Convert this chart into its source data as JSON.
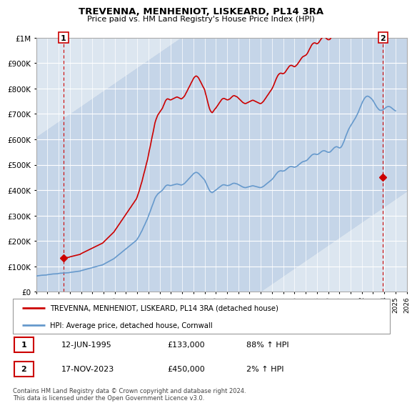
{
  "title": "TREVENNA, MENHENIOT, LISKEARD, PL14 3RA",
  "subtitle": "Price paid vs. HM Land Registry's House Price Index (HPI)",
  "legend_line1": "TREVENNA, MENHENIOT, LISKEARD, PL14 3RA (detached house)",
  "legend_line2": "HPI: Average price, detached house, Cornwall",
  "footnote": "Contains HM Land Registry data © Crown copyright and database right 2024.\nThis data is licensed under the Open Government Licence v3.0.",
  "annotation1_label": "1",
  "annotation1_date": "12-JUN-1995",
  "annotation1_price": "£133,000",
  "annotation1_hpi": "88% ↑ HPI",
  "annotation2_label": "2",
  "annotation2_date": "17-NOV-2023",
  "annotation2_price": "£450,000",
  "annotation2_hpi": "2% ↑ HPI",
  "red_line_color": "#cc0000",
  "blue_line_color": "#6699cc",
  "point1_x": 1995.44,
  "point1_y": 133000,
  "point2_x": 2023.88,
  "point2_y": 450000,
  "ylim": [
    0,
    1000000
  ],
  "xlim": [
    1993,
    2026
  ],
  "hpi_years": [
    1993.0,
    1993.08,
    1993.17,
    1993.25,
    1993.33,
    1993.42,
    1993.5,
    1993.58,
    1993.67,
    1993.75,
    1993.83,
    1993.92,
    1994.0,
    1994.08,
    1994.17,
    1994.25,
    1994.33,
    1994.42,
    1994.5,
    1994.58,
    1994.67,
    1994.75,
    1994.83,
    1994.92,
    1995.0,
    1995.08,
    1995.17,
    1995.25,
    1995.33,
    1995.42,
    1995.5,
    1995.58,
    1995.67,
    1995.75,
    1995.83,
    1995.92,
    1996.0,
    1996.08,
    1996.17,
    1996.25,
    1996.33,
    1996.42,
    1996.5,
    1996.58,
    1996.67,
    1996.75,
    1996.83,
    1996.92,
    1997.0,
    1997.08,
    1997.17,
    1997.25,
    1997.33,
    1997.42,
    1997.5,
    1997.58,
    1997.67,
    1997.75,
    1997.83,
    1997.92,
    1998.0,
    1998.08,
    1998.17,
    1998.25,
    1998.33,
    1998.42,
    1998.5,
    1998.58,
    1998.67,
    1998.75,
    1998.83,
    1998.92,
    1999.0,
    1999.08,
    1999.17,
    1999.25,
    1999.33,
    1999.42,
    1999.5,
    1999.58,
    1999.67,
    1999.75,
    1999.83,
    1999.92,
    2000.0,
    2000.08,
    2000.17,
    2000.25,
    2000.33,
    2000.42,
    2000.5,
    2000.58,
    2000.67,
    2000.75,
    2000.83,
    2000.92,
    2001.0,
    2001.08,
    2001.17,
    2001.25,
    2001.33,
    2001.42,
    2001.5,
    2001.58,
    2001.67,
    2001.75,
    2001.83,
    2001.92,
    2002.0,
    2002.08,
    2002.17,
    2002.25,
    2002.33,
    2002.42,
    2002.5,
    2002.58,
    2002.67,
    2002.75,
    2002.83,
    2002.92,
    2003.0,
    2003.08,
    2003.17,
    2003.25,
    2003.33,
    2003.42,
    2003.5,
    2003.58,
    2003.67,
    2003.75,
    2003.83,
    2003.92,
    2004.0,
    2004.08,
    2004.17,
    2004.25,
    2004.33,
    2004.42,
    2004.5,
    2004.58,
    2004.67,
    2004.75,
    2004.83,
    2004.92,
    2005.0,
    2005.08,
    2005.17,
    2005.25,
    2005.33,
    2005.42,
    2005.5,
    2005.58,
    2005.67,
    2005.75,
    2005.83,
    2005.92,
    2006.0,
    2006.08,
    2006.17,
    2006.25,
    2006.33,
    2006.42,
    2006.5,
    2006.58,
    2006.67,
    2006.75,
    2006.83,
    2006.92,
    2007.0,
    2007.08,
    2007.17,
    2007.25,
    2007.33,
    2007.42,
    2007.5,
    2007.58,
    2007.67,
    2007.75,
    2007.83,
    2007.92,
    2008.0,
    2008.08,
    2008.17,
    2008.25,
    2008.33,
    2008.42,
    2008.5,
    2008.58,
    2008.67,
    2008.75,
    2008.83,
    2008.92,
    2009.0,
    2009.08,
    2009.17,
    2009.25,
    2009.33,
    2009.42,
    2009.5,
    2009.58,
    2009.67,
    2009.75,
    2009.83,
    2009.92,
    2010.0,
    2010.08,
    2010.17,
    2010.25,
    2010.33,
    2010.42,
    2010.5,
    2010.58,
    2010.67,
    2010.75,
    2010.83,
    2010.92,
    2011.0,
    2011.08,
    2011.17,
    2011.25,
    2011.33,
    2011.42,
    2011.5,
    2011.58,
    2011.67,
    2011.75,
    2011.83,
    2011.92,
    2012.0,
    2012.08,
    2012.17,
    2012.25,
    2012.33,
    2012.42,
    2012.5,
    2012.58,
    2012.67,
    2012.75,
    2012.83,
    2012.92,
    2013.0,
    2013.08,
    2013.17,
    2013.25,
    2013.33,
    2013.42,
    2013.5,
    2013.58,
    2013.67,
    2013.75,
    2013.83,
    2013.92,
    2014.0,
    2014.08,
    2014.17,
    2014.25,
    2014.33,
    2014.42,
    2014.5,
    2014.58,
    2014.67,
    2014.75,
    2014.83,
    2014.92,
    2015.0,
    2015.08,
    2015.17,
    2015.25,
    2015.33,
    2015.42,
    2015.5,
    2015.58,
    2015.67,
    2015.75,
    2015.83,
    2015.92,
    2016.0,
    2016.08,
    2016.17,
    2016.25,
    2016.33,
    2016.42,
    2016.5,
    2016.58,
    2016.67,
    2016.75,
    2016.83,
    2016.92,
    2017.0,
    2017.08,
    2017.17,
    2017.25,
    2017.33,
    2017.42,
    2017.5,
    2017.58,
    2017.67,
    2017.75,
    2017.83,
    2017.92,
    2018.0,
    2018.08,
    2018.17,
    2018.25,
    2018.33,
    2018.42,
    2018.5,
    2018.58,
    2018.67,
    2018.75,
    2018.83,
    2018.92,
    2019.0,
    2019.08,
    2019.17,
    2019.25,
    2019.33,
    2019.42,
    2019.5,
    2019.58,
    2019.67,
    2019.75,
    2019.83,
    2019.92,
    2020.0,
    2020.08,
    2020.17,
    2020.25,
    2020.33,
    2020.42,
    2020.5,
    2020.58,
    2020.67,
    2020.75,
    2020.83,
    2020.92,
    2021.0,
    2021.08,
    2021.17,
    2021.25,
    2021.33,
    2021.42,
    2021.5,
    2021.58,
    2021.67,
    2021.75,
    2021.83,
    2021.92,
    2022.0,
    2022.08,
    2022.17,
    2022.25,
    2022.33,
    2022.42,
    2022.5,
    2022.58,
    2022.67,
    2022.75,
    2022.83,
    2022.92,
    2023.0,
    2023.08,
    2023.17,
    2023.25,
    2023.33,
    2023.42,
    2023.5,
    2023.58,
    2023.67,
    2023.75,
    2023.83,
    2023.92,
    2024.0,
    2024.08,
    2024.17,
    2024.25,
    2024.33,
    2024.42,
    2024.5,
    2024.58,
    2024.67,
    2024.75,
    2024.83,
    2024.92,
    2025.0
  ],
  "hpi_values": [
    62000,
    62500,
    63000,
    63500,
    64000,
    64500,
    65000,
    65200,
    65400,
    65600,
    65800,
    66000,
    67000,
    67500,
    68000,
    68500,
    69000,
    69500,
    70000,
    70200,
    70400,
    70600,
    70800,
    71000,
    72000,
    72500,
    73000,
    73200,
    73400,
    73600,
    74000,
    74200,
    74400,
    74600,
    74800,
    75000,
    76000,
    76500,
    77000,
    77500,
    78000,
    78500,
    79000,
    79500,
    80000,
    80500,
    81000,
    81500,
    83000,
    84000,
    85000,
    86000,
    87000,
    88000,
    89000,
    90000,
    91000,
    92000,
    93000,
    94000,
    95000,
    96000,
    97000,
    98000,
    99000,
    100000,
    101000,
    102000,
    103000,
    104000,
    105000,
    106000,
    108000,
    110000,
    112000,
    114000,
    116000,
    118000,
    120000,
    122000,
    124000,
    126000,
    128000,
    130000,
    133000,
    136000,
    139000,
    142000,
    145000,
    148000,
    151000,
    154000,
    157000,
    160000,
    163000,
    166000,
    169000,
    172000,
    175000,
    178000,
    181000,
    184000,
    187000,
    190000,
    193000,
    196000,
    199000,
    202000,
    207000,
    213000,
    219000,
    226000,
    233000,
    240000,
    248000,
    256000,
    264000,
    272000,
    280000,
    288000,
    298000,
    308000,
    318000,
    328000,
    338000,
    348000,
    358000,
    368000,
    375000,
    380000,
    385000,
    388000,
    391000,
    394000,
    397000,
    400000,
    405000,
    410000,
    415000,
    418000,
    420000,
    420000,
    419000,
    418000,
    418000,
    419000,
    420000,
    421000,
    422000,
    423000,
    424000,
    424000,
    423000,
    422000,
    421000,
    420000,
    421000,
    423000,
    425000,
    428000,
    432000,
    436000,
    440000,
    444000,
    448000,
    452000,
    456000,
    460000,
    464000,
    467000,
    469000,
    470000,
    469000,
    467000,
    464000,
    460000,
    456000,
    452000,
    448000,
    444000,
    440000,
    432000,
    424000,
    416000,
    408000,
    400000,
    395000,
    392000,
    390000,
    392000,
    395000,
    398000,
    400000,
    403000,
    406000,
    409000,
    412000,
    415000,
    418000,
    420000,
    421000,
    421000,
    420000,
    419000,
    418000,
    418000,
    419000,
    420000,
    422000,
    424000,
    426000,
    427000,
    427000,
    426000,
    425000,
    424000,
    422000,
    420000,
    418000,
    416000,
    414000,
    412000,
    411000,
    410000,
    410000,
    411000,
    412000,
    413000,
    414000,
    415000,
    416000,
    417000,
    417000,
    416000,
    415000,
    414000,
    413000,
    412000,
    411000,
    410000,
    410000,
    411000,
    413000,
    415000,
    418000,
    421000,
    424000,
    427000,
    430000,
    433000,
    436000,
    439000,
    442000,
    446000,
    451000,
    456000,
    461000,
    466000,
    470000,
    473000,
    475000,
    476000,
    476000,
    475000,
    475000,
    476000,
    478000,
    481000,
    484000,
    487000,
    490000,
    492000,
    493000,
    493000,
    492000,
    491000,
    490000,
    491000,
    493000,
    495000,
    498000,
    501000,
    504000,
    507000,
    510000,
    512000,
    513000,
    514000,
    515000,
    517000,
    520000,
    524000,
    528000,
    532000,
    536000,
    539000,
    541000,
    542000,
    542000,
    541000,
    540000,
    541000,
    543000,
    546000,
    549000,
    552000,
    554000,
    555000,
    555000,
    554000,
    552000,
    550000,
    549000,
    549000,
    550000,
    553000,
    557000,
    561000,
    565000,
    568000,
    570000,
    571000,
    570000,
    568000,
    566000,
    567000,
    570000,
    576000,
    584000,
    593000,
    603000,
    613000,
    623000,
    632000,
    640000,
    647000,
    653000,
    659000,
    665000,
    671000,
    677000,
    683000,
    690000,
    697000,
    705000,
    714000,
    723000,
    732000,
    741000,
    749000,
    756000,
    762000,
    766000,
    769000,
    770000,
    769000,
    767000,
    764000,
    761000,
    757000,
    752000,
    746000,
    739000,
    733000,
    727000,
    722000,
    718000,
    715000,
    714000,
    714000,
    715000,
    717000,
    720000,
    723000,
    726000,
    728000,
    729000,
    729000,
    728000,
    726000,
    723000,
    720000,
    717000,
    714000,
    712000
  ],
  "red_years_data": [
    1995.44,
    2023.88
  ],
  "red_values_data": [
    133000,
    450000
  ],
  "point1_marker": "D",
  "point2_marker": "D"
}
